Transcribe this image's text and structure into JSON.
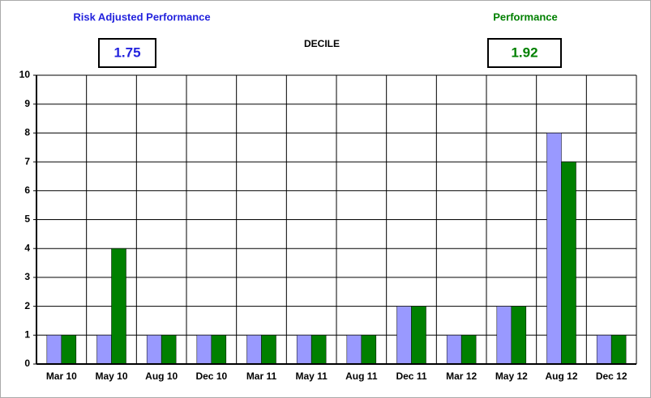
{
  "chart_data": {
    "type": "bar",
    "title": "DECILE",
    "categories": [
      "Mar 10",
      "May 10",
      "Aug 10",
      "Dec 10",
      "Mar 11",
      "May 11",
      "Aug 11",
      "Dec 11",
      "Mar 12",
      "May 12",
      "Aug 12",
      "Dec 12"
    ],
    "series": [
      {
        "name": "Risk Adjusted Performance",
        "color": "#9999ff",
        "summary_value": 1.75,
        "values": [
          1,
          1,
          1,
          1,
          1,
          1,
          1,
          2,
          1,
          2,
          8,
          1
        ]
      },
      {
        "name": "Performance",
        "color": "#008000",
        "summary_value": 1.92,
        "values": [
          1,
          4,
          1,
          1,
          1,
          1,
          1,
          2,
          1,
          2,
          7,
          1
        ]
      }
    ],
    "ylim": [
      0,
      10
    ],
    "yticks": [
      0,
      1,
      2,
      3,
      4,
      5,
      6,
      7,
      8,
      9,
      10
    ],
    "grid": true
  }
}
